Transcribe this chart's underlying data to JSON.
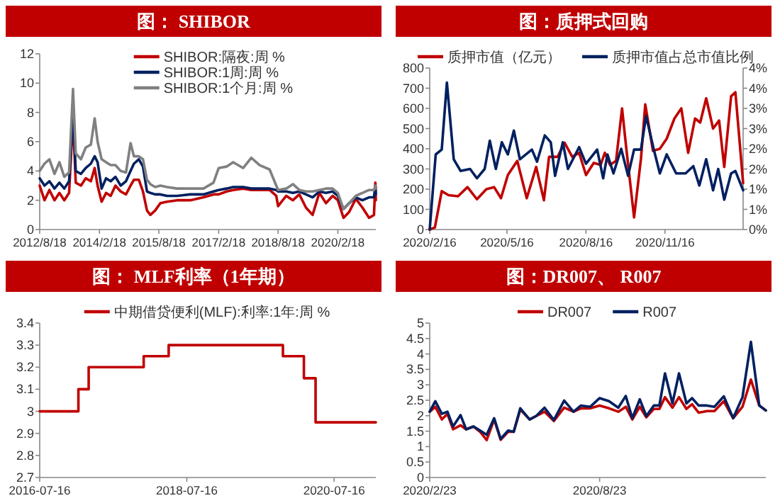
{
  "chart_data": [
    {
      "type": "line",
      "title": "图： SHIBOR",
      "legend": "top",
      "xlim": [
        "2012-08-18",
        "2021-02-01"
      ],
      "ylim": [
        0,
        12
      ],
      "yticks": [
        0,
        2,
        4,
        6,
        8,
        10,
        12
      ],
      "xticks": [
        {
          "value": "2012-08-18",
          "label": "2012/8/18"
        },
        {
          "value": "2014-02-18",
          "label": "2014/2/18"
        },
        {
          "value": "2015-08-18",
          "label": "2015/8/18"
        },
        {
          "value": "2017-02-18",
          "label": "2017/2/18"
        },
        {
          "value": "2018-08-18",
          "label": "2018/8/18"
        },
        {
          "value": "2020-02-18",
          "label": "2020/2/18"
        }
      ],
      "x": [
        "2012-08-18",
        "2012-10-01",
        "2012-11-15",
        "2013-01-01",
        "2013-02-15",
        "2013-04-01",
        "2013-05-15",
        "2013-06-20",
        "2013-07-15",
        "2013-09-01",
        "2013-10-15",
        "2013-12-01",
        "2014-01-05",
        "2014-02-01",
        "2014-03-10",
        "2014-04-20",
        "2014-06-01",
        "2014-07-15",
        "2014-09-01",
        "2014-10-20",
        "2014-12-01",
        "2015-01-01",
        "2015-02-15",
        "2015-03-25",
        "2015-05-01",
        "2015-06-01",
        "2015-07-15",
        "2015-09-01",
        "2015-11-01",
        "2016-02-01",
        "2016-06-01",
        "2016-10-01",
        "2017-01-01",
        "2017-02-18",
        "2017-05-01",
        "2017-07-01",
        "2017-10-01",
        "2017-12-15",
        "2018-03-01",
        "2018-06-01",
        "2018-08-01",
        "2018-08-18",
        "2018-11-01",
        "2019-01-01",
        "2019-03-01",
        "2019-05-01",
        "2019-07-01",
        "2019-09-01",
        "2019-11-01",
        "2020-01-01",
        "2020-02-18",
        "2020-04-10",
        "2020-06-01",
        "2020-08-01",
        "2020-10-01",
        "2020-12-01",
        "2021-01-15",
        "2021-01-28",
        "2021-02-01"
      ],
      "series": [
        {
          "name": "SHIBOR:隔夜:周 %",
          "color": "#c00000",
          "values": [
            3.0,
            2.0,
            2.7,
            2.0,
            2.5,
            2.0,
            2.5,
            7.7,
            3.2,
            3.0,
            3.5,
            3.3,
            4.2,
            3.0,
            1.9,
            2.5,
            2.3,
            3.0,
            2.6,
            2.4,
            3.0,
            3.4,
            3.4,
            2.6,
            1.3,
            1.0,
            1.3,
            1.8,
            1.9,
            2.0,
            2.0,
            2.2,
            2.4,
            2.4,
            2.6,
            2.7,
            2.8,
            2.7,
            2.7,
            2.7,
            2.3,
            1.6,
            2.3,
            2.0,
            2.4,
            1.5,
            1.0,
            2.5,
            1.8,
            2.3,
            2.0,
            0.8,
            1.2,
            2.1,
            1.5,
            0.8,
            1.0,
            3.2,
            2.0
          ]
        },
        {
          "name": "SHIBOR:1周:周 %",
          "color": "#002060",
          "values": [
            3.5,
            3.0,
            3.3,
            2.8,
            3.2,
            2.8,
            3.3,
            8.0,
            4.0,
            3.8,
            4.2,
            4.5,
            5.0,
            4.6,
            2.8,
            3.5,
            3.3,
            3.6,
            3.0,
            3.3,
            4.0,
            4.5,
            4.8,
            4.3,
            2.6,
            2.5,
            2.4,
            2.4,
            2.3,
            2.3,
            2.4,
            2.4,
            2.6,
            2.7,
            2.8,
            2.9,
            2.9,
            2.8,
            2.8,
            2.8,
            2.7,
            2.6,
            2.6,
            2.5,
            2.6,
            2.4,
            2.2,
            2.6,
            2.5,
            2.6,
            2.3,
            1.4,
            1.8,
            2.2,
            2.0,
            2.2,
            2.2,
            3.0,
            2.4
          ]
        },
        {
          "name": "SHIBOR:1个月:周 %",
          "color": "#808080",
          "values": [
            4.0,
            4.5,
            4.8,
            3.8,
            4.6,
            3.6,
            3.9,
            9.6,
            5.2,
            4.8,
            5.6,
            5.8,
            7.6,
            6.0,
            4.8,
            4.6,
            4.4,
            4.4,
            4.0,
            3.9,
            5.9,
            5.0,
            5.0,
            4.8,
            3.4,
            3.1,
            2.9,
            3.0,
            2.9,
            2.8,
            2.8,
            2.8,
            3.2,
            4.2,
            4.3,
            4.6,
            4.2,
            4.9,
            4.4,
            4.1,
            3.0,
            2.7,
            2.8,
            3.1,
            2.7,
            2.6,
            2.6,
            2.7,
            2.8,
            2.8,
            2.5,
            1.4,
            1.8,
            2.3,
            2.5,
            2.7,
            2.7,
            3.0,
            2.8
          ]
        }
      ]
    },
    {
      "type": "line",
      "title": "图：质押式回购",
      "legend": "top",
      "xlim": [
        "2020-02-16",
        "2021-02-15"
      ],
      "ylim": [
        0,
        800
      ],
      "yticks": [
        0,
        100,
        200,
        300,
        400,
        500,
        600,
        700,
        800
      ],
      "y2lim": [
        0,
        4
      ],
      "y2ticks": [
        {
          "value": 0,
          "label": "0%"
        },
        {
          "value": 0.5,
          "label": "1%"
        },
        {
          "value": 1,
          "label": "1%"
        },
        {
          "value": 1.5,
          "label": "2%"
        },
        {
          "value": 2,
          "label": "2%"
        },
        {
          "value": 2.5,
          "label": "3%"
        },
        {
          "value": 3,
          "label": "3%"
        },
        {
          "value": 3.5,
          "label": "4%"
        },
        {
          "value": 4,
          "label": "4%"
        }
      ],
      "xticks": [
        {
          "value": "2020-02-16",
          "label": "2020/2/16"
        },
        {
          "value": "2020-05-16",
          "label": "2020/5/16"
        },
        {
          "value": "2020-08-16",
          "label": "2020/8/16"
        },
        {
          "value": "2020-11-16",
          "label": "2020/11/16"
        }
      ],
      "series": [
        {
          "name": "质押市值（亿元）",
          "color": "#c00000",
          "x": [
            "2020-02-16",
            "2020-02-22",
            "2020-03-01",
            "2020-03-09",
            "2020-03-20",
            "2020-03-31",
            "2020-04-11",
            "2020-04-22",
            "2020-05-01",
            "2020-05-09",
            "2020-05-17",
            "2020-05-28",
            "2020-06-08",
            "2020-06-19",
            "2020-06-28",
            "2020-07-04",
            "2020-07-14",
            "2020-07-22",
            "2020-07-31",
            "2020-08-08",
            "2020-08-16",
            "2020-08-25",
            "2020-09-02",
            "2020-09-07",
            "2020-09-13",
            "2020-09-20",
            "2020-09-27",
            "2020-10-02",
            "2020-10-11",
            "2020-10-19",
            "2020-10-24",
            "2020-11-02",
            "2020-11-10",
            "2020-11-18",
            "2020-11-27",
            "2020-12-05",
            "2020-12-13",
            "2020-12-21",
            "2020-12-27",
            "2021-01-03",
            "2021-01-11",
            "2021-01-18",
            "2021-01-24",
            "2021-02-01",
            "2021-02-06",
            "2021-02-15"
          ],
          "values": [
            0,
            10,
            190,
            170,
            165,
            210,
            150,
            200,
            210,
            155,
            270,
            340,
            155,
            310,
            145,
            360,
            360,
            430,
            360,
            380,
            270,
            330,
            320,
            380,
            320,
            340,
            600,
            400,
            60,
            350,
            620,
            390,
            400,
            450,
            550,
            600,
            380,
            550,
            530,
            650,
            500,
            540,
            310,
            660,
            680,
            230
          ]
        },
        {
          "name": "质押市值占总市值比例",
          "color": "#002060",
          "axis": "y2",
          "x": [
            "2020-02-16",
            "2020-02-23",
            "2020-03-01",
            "2020-03-07",
            "2020-03-15",
            "2020-03-23",
            "2020-04-03",
            "2020-04-11",
            "2020-04-20",
            "2020-04-26",
            "2020-05-03",
            "2020-05-10",
            "2020-05-17",
            "2020-05-24",
            "2020-05-31",
            "2020-06-14",
            "2020-06-20",
            "2020-06-29",
            "2020-07-06",
            "2020-07-11",
            "2020-07-20",
            "2020-07-26",
            "2020-08-08",
            "2020-08-16",
            "2020-08-29",
            "2020-09-05",
            "2020-09-10",
            "2020-09-17",
            "2020-09-26",
            "2020-10-04",
            "2020-10-11",
            "2020-10-19",
            "2020-10-25",
            "2020-11-03",
            "2020-11-10",
            "2020-11-18",
            "2020-11-29",
            "2020-12-10",
            "2020-12-19",
            "2020-12-26",
            "2021-01-03",
            "2021-01-11",
            "2021-01-17",
            "2021-01-24",
            "2021-02-01",
            "2021-02-06",
            "2021-02-15"
          ],
          "values": [
            0,
            1.86,
            1.98,
            3.64,
            1.74,
            1.45,
            1.5,
            1.27,
            1.5,
            2.2,
            1.5,
            2.16,
            1.86,
            2.45,
            1.74,
            1.98,
            1.68,
            2.33,
            2.16,
            1.33,
            2.16,
            1.5,
            2.04,
            1.63,
            1.98,
            1.27,
            1.86,
            1.39,
            2.0,
            1.33,
            1.98,
            1.98,
            2.81,
            1.98,
            1.39,
            1.86,
            1.39,
            1.39,
            1.57,
            1.09,
            1.74,
            0.97,
            1.5,
            0.74,
            1.39,
            1.45,
            0.97
          ]
        }
      ]
    },
    {
      "type": "step",
      "title": "图： MLF利率（1年期）",
      "legend": "top",
      "xlim": [
        "2016-07-16",
        "2021-02-08"
      ],
      "ylim": [
        2.7,
        3.4
      ],
      "yticks": [
        2.7,
        2.8,
        2.9,
        3,
        3.1,
        3.2,
        3.3,
        3.4
      ],
      "xticks": [
        {
          "value": "2016-07-16",
          "label": "2016-07-16"
        },
        {
          "value": "2018-07-16",
          "label": "2018-07-16"
        },
        {
          "value": "2020-07-16",
          "label": "2020-07-16"
        }
      ],
      "series": [
        {
          "name": "中期借贷便利(MLF):利率:1年:周   %",
          "color": "#c00000",
          "x": [
            "2016-07-16",
            "2017-01-24",
            "2017-03-16",
            "2017-12-14",
            "2018-04-17",
            "2019-11-05",
            "2020-02-17",
            "2020-04-15",
            "2021-02-08"
          ],
          "values": [
            3,
            3.1,
            3.2,
            3.25,
            3.3,
            3.25,
            3.15,
            2.95,
            2.95
          ]
        }
      ]
    },
    {
      "type": "line",
      "title": "图：DR007、 R007",
      "legend": "top",
      "xlim": [
        "2020-02-23",
        "2021-02-17"
      ],
      "ylim": [
        0,
        5
      ],
      "yticks": [
        0,
        0.5,
        1,
        1.5,
        2,
        2.5,
        3,
        3.5,
        4,
        4.5,
        5
      ],
      "xticks": [
        {
          "value": "2020-02-23",
          "label": "2020/2/23"
        },
        {
          "value": "2020-08-23",
          "label": "2020/8/23"
        }
      ],
      "x": [
        "2020-02-23",
        "2020-02-29",
        "2020-03-07",
        "2020-03-13",
        "2020-03-19",
        "2020-03-27",
        "2020-04-02",
        "2020-04-10",
        "2020-04-17",
        "2020-04-24",
        "2020-05-02",
        "2020-05-09",
        "2020-05-17",
        "2020-05-23",
        "2020-05-30",
        "2020-06-09",
        "2020-06-16",
        "2020-06-25",
        "2020-07-05",
        "2020-07-16",
        "2020-07-26",
        "2020-08-03",
        "2020-08-13",
        "2020-08-23",
        "2020-09-02",
        "2020-09-12",
        "2020-09-20",
        "2020-09-27",
        "2020-10-05",
        "2020-10-12",
        "2020-10-20",
        "2020-10-26",
        "2020-11-01",
        "2020-11-09",
        "2020-11-16",
        "2020-11-24",
        "2020-11-30",
        "2020-12-07",
        "2020-12-16",
        "2020-12-24",
        "2021-01-03",
        "2021-01-13",
        "2021-01-23",
        "2021-02-01",
        "2021-02-10",
        "2021-02-17"
      ],
      "series": [
        {
          "name": "DR007",
          "color": "#c00000",
          "values": [
            2.13,
            2.29,
            1.88,
            2.06,
            1.56,
            1.69,
            1.56,
            1.65,
            1.48,
            1.21,
            1.88,
            1.22,
            1.48,
            1.48,
            2.2,
            1.88,
            1.99,
            2.13,
            1.83,
            2.26,
            2.13,
            2.24,
            2.24,
            2.33,
            2.24,
            2.13,
            2.29,
            1.88,
            2.29,
            1.95,
            2.22,
            2.22,
            2.6,
            2.26,
            2.6,
            2.22,
            2.37,
            2.1,
            2.15,
            2.15,
            2.47,
            1.92,
            2.29,
            3.17,
            2.33,
            2.17
          ]
        },
        {
          "name": "R007",
          "color": "#002060",
          "values": [
            2.13,
            2.47,
            2.06,
            2.13,
            1.65,
            2.02,
            1.56,
            1.65,
            1.52,
            1.38,
            1.92,
            1.25,
            1.52,
            1.48,
            2.24,
            1.88,
            1.99,
            2.26,
            1.86,
            2.49,
            2.13,
            2.33,
            2.29,
            2.57,
            2.47,
            2.26,
            2.64,
            1.92,
            2.53,
            1.99,
            2.33,
            2.33,
            3.37,
            2.4,
            3.37,
            2.4,
            2.57,
            2.33,
            2.33,
            2.29,
            2.63,
            1.92,
            2.6,
            4.39,
            2.33,
            2.17
          ]
        }
      ]
    }
  ]
}
